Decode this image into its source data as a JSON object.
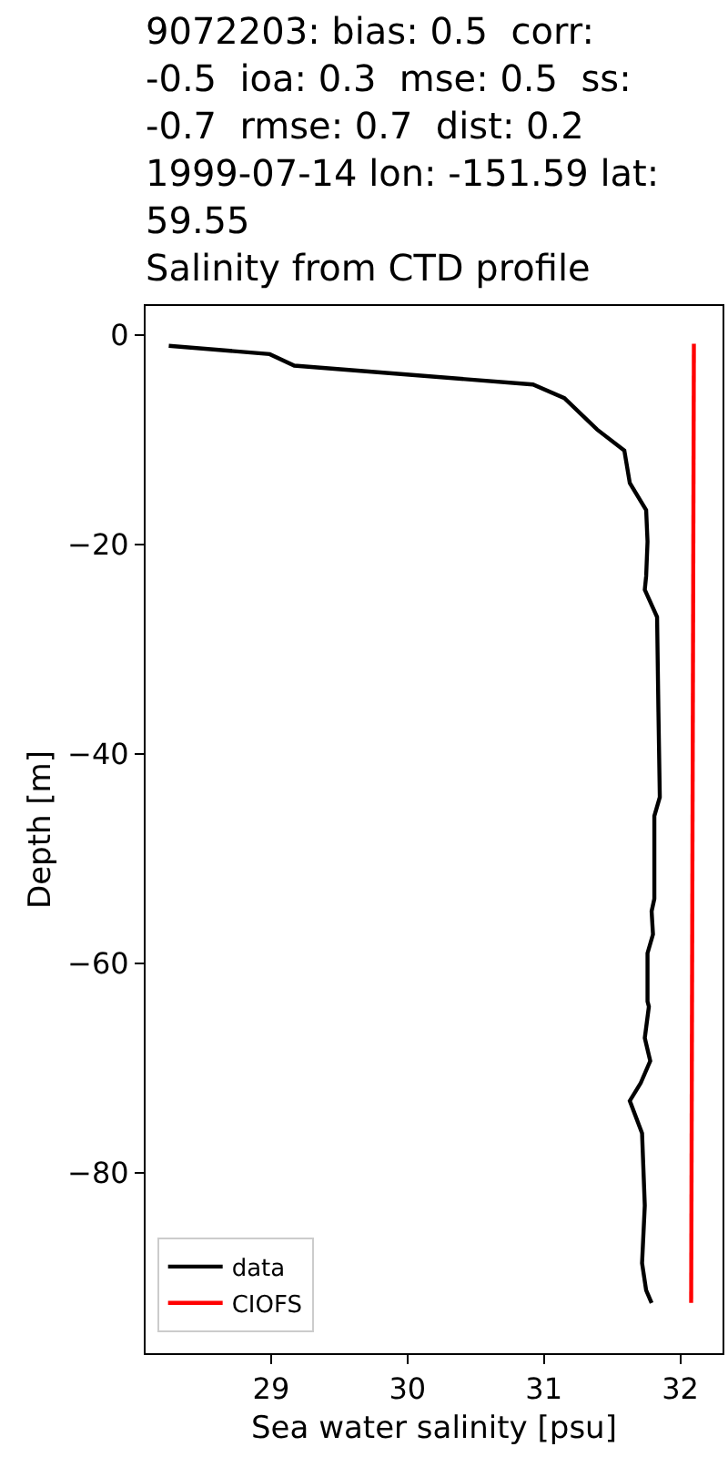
{
  "chart_data": {
    "type": "line",
    "title": "9072203: bias: 0.5  corr:\n-0.5  ioa: 0.3  mse: 0.5  ss:\n-0.7  rmse: 0.7  dist: 0.2\n1999-07-14 lon: -151.59 lat:\n59.55\nSalinity from CTD profile",
    "xlabel": "Sea water salinity [psu]",
    "ylabel": "Depth [m]",
    "series": [
      {
        "name": "data",
        "color": "#000000",
        "x": [
          28.25,
          28.99,
          29.17,
          30.92,
          31.15,
          31.39,
          31.59,
          31.63,
          31.75,
          31.76,
          31.75,
          31.74,
          31.83,
          31.84,
          31.85,
          31.81,
          31.81,
          31.79,
          31.8,
          31.76,
          31.76,
          31.77,
          31.74,
          31.78,
          31.71,
          31.63,
          31.72,
          31.74,
          31.72,
          31.75,
          31.79
        ],
        "values": [
          -1.0,
          -1.8,
          -2.9,
          -4.7,
          -6.0,
          -9.0,
          -11.0,
          -14.1,
          -16.7,
          -19.7,
          -23.0,
          -24.3,
          -26.9,
          -36.0,
          -44.1,
          -45.9,
          -53.8,
          -55.0,
          -57.2,
          -59.0,
          -63.6,
          -64.1,
          -67.1,
          -69.3,
          -71.4,
          -73.1,
          -76.2,
          -83.1,
          -88.6,
          -91.2,
          -92.4
        ]
      },
      {
        "name": "CIOFS",
        "color": "#ff0000",
        "x": [
          32.1,
          32.08
        ],
        "values": [
          -0.8,
          -92.4
        ]
      }
    ],
    "xlim": [
      28.08,
      32.31
    ],
    "ylim": [
      -97.2,
      2.8
    ],
    "xticks": [
      29,
      30,
      31,
      32
    ],
    "yticks": [
      0,
      -20,
      -40,
      -60,
      -80
    ],
    "legend": "bottom left",
    "line_style": "solid",
    "marker": "none"
  }
}
